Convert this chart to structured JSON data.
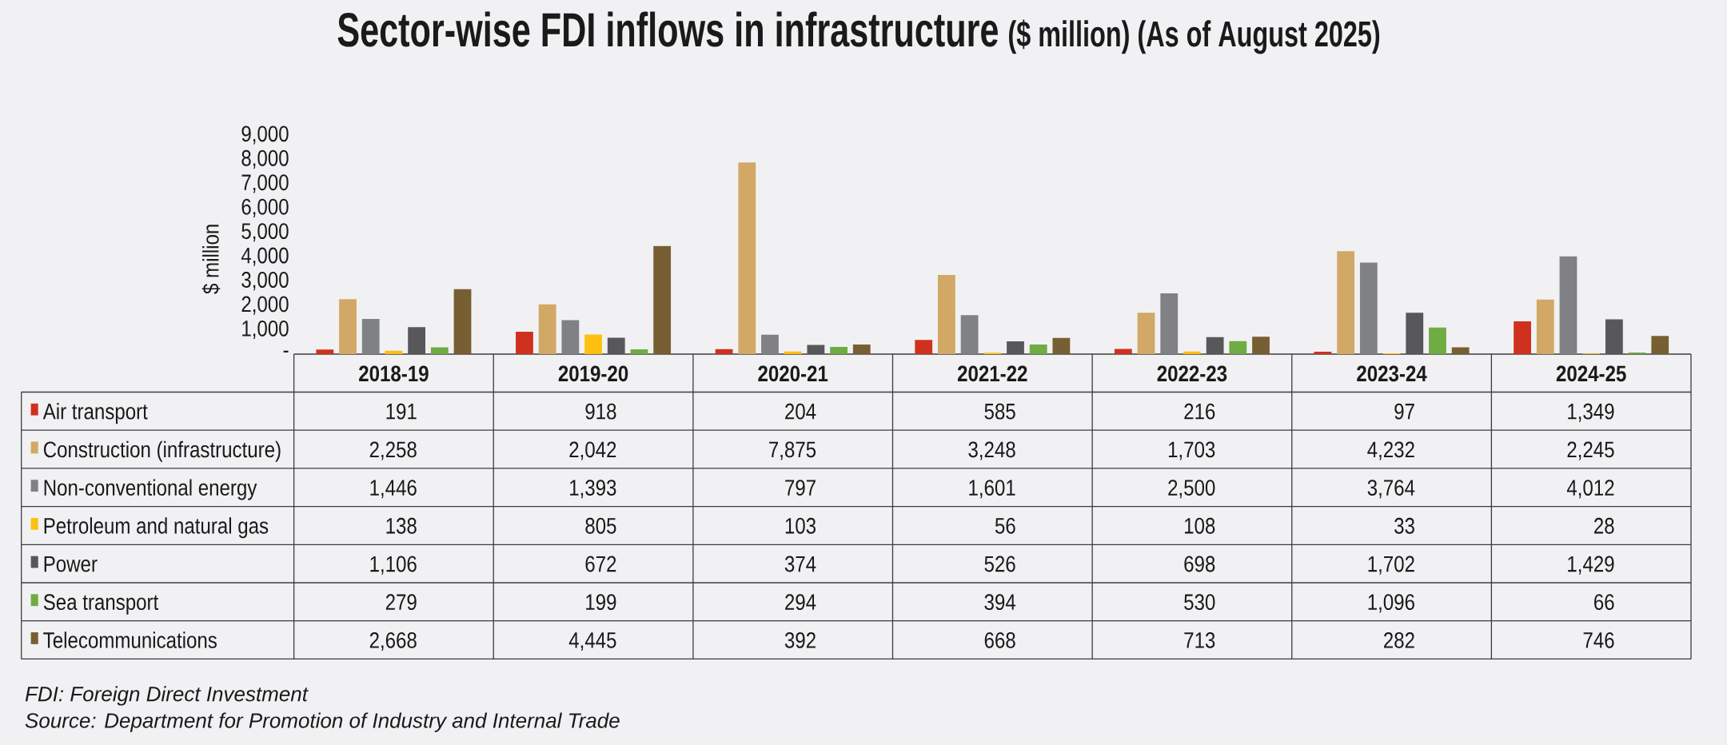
{
  "chart_data": {
    "type": "bar",
    "title": "Sector-wise FDI inflows in infrastructure",
    "subtitle": "($ million) (As of August 2025)",
    "ylabel": "$ million",
    "categories": [
      "2018-19",
      "2019-20",
      "2020-21",
      "2021-22",
      "2022-23",
      "2023-24",
      "2024-25"
    ],
    "series": [
      {
        "name": "Air transport",
        "color": "#d0311f",
        "values": [
          191,
          918,
          204,
          585,
          216,
          97,
          1349
        ],
        "value_labels": [
          "191",
          "918",
          "204",
          "585",
          "216",
          "97",
          "1,349"
        ]
      },
      {
        "name": "Construction (infrastructure)",
        "color": "#d1a866",
        "values": [
          2258,
          2042,
          7875,
          3248,
          1703,
          4232,
          2245
        ],
        "value_labels": [
          "2,258",
          "2,042",
          "7,875",
          "3,248",
          "1,703",
          "4,232",
          "2,245"
        ]
      },
      {
        "name": "Non-conventional energy",
        "color": "#808184",
        "values": [
          1446,
          1393,
          797,
          1601,
          2500,
          3764,
          4012
        ],
        "value_labels": [
          "1,446",
          "1,393",
          "797",
          "1,601",
          "2,500",
          "3,764",
          "4,012"
        ]
      },
      {
        "name": "Petroleum and natural gas",
        "color": "#fdc010",
        "values": [
          138,
          805,
          103,
          56,
          108,
          33,
          28
        ],
        "value_labels": [
          "138",
          "805",
          "103",
          "56",
          "108",
          "33",
          "28"
        ]
      },
      {
        "name": "Power",
        "color": "#58585a",
        "values": [
          1106,
          672,
          374,
          526,
          698,
          1702,
          1429
        ],
        "value_labels": [
          "1,106",
          "672",
          "374",
          "526",
          "698",
          "1,702",
          "1,429"
        ]
      },
      {
        "name": "Sea transport",
        "color": "#6fac44",
        "values": [
          279,
          199,
          294,
          394,
          530,
          1096,
          66
        ],
        "value_labels": [
          "279",
          "199",
          "294",
          "394",
          "530",
          "1,096",
          "66"
        ]
      },
      {
        "name": "Telecommunications",
        "color": "#775f33",
        "values": [
          2668,
          4445,
          392,
          668,
          713,
          282,
          746
        ],
        "value_labels": [
          "2,668",
          "4,445",
          "392",
          "668",
          "713",
          "282",
          "746"
        ]
      }
    ],
    "ylim": [
      0,
      9000
    ],
    "yticks": [
      {
        "value": 0,
        "label": "-"
      },
      {
        "value": 1000,
        "label": "1,000"
      },
      {
        "value": 2000,
        "label": "2,000"
      },
      {
        "value": 3000,
        "label": "3,000"
      },
      {
        "value": 4000,
        "label": "4,000"
      },
      {
        "value": 5000,
        "label": "5,000"
      },
      {
        "value": 6000,
        "label": "6,000"
      },
      {
        "value": 7000,
        "label": "7,000"
      },
      {
        "value": 8000,
        "label": "8,000"
      },
      {
        "value": 9000,
        "label": "9,000"
      }
    ],
    "legend": "bottom",
    "annotations": [
      "FDI: Foreign Direct Investment",
      "Source: Department for Promotion of Industry and Internal Trade"
    ]
  }
}
